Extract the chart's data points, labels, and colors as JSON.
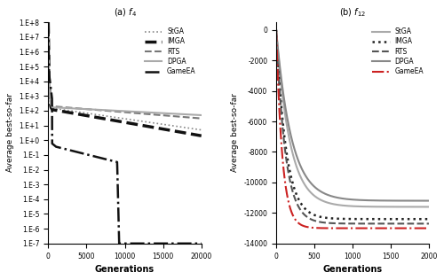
{
  "fig_width": 5.0,
  "fig_height": 3.16,
  "dpi": 100,
  "background_color": "#ffffff",
  "subplot_a": {
    "title": "(a) $f_4$",
    "xlabel": "Generations",
    "ylabel": "Average best-so-far",
    "xlim": [
      0,
      20000
    ],
    "ylim_log": [
      1e-07,
      100000000.0
    ],
    "yticks": [
      1e-07,
      1e-06,
      1e-05,
      0.0001,
      0.001,
      0.01,
      0.1,
      1.0,
      10.0,
      100.0,
      1000.0,
      10000.0,
      100000.0,
      1000000.0,
      10000000.0,
      100000000.0
    ],
    "ytick_labels": [
      "1.E-7",
      "1.E-6",
      "1.E-5",
      "1.E-4",
      "1.E-3",
      "1.E-2",
      "1.E-1",
      "1.E+0",
      "1.E+1",
      "1.E+2",
      "1.E+3",
      "1.E+4",
      "1.E+5",
      "1.E+6",
      "1.E+7",
      "1.E+8"
    ],
    "xticks": [
      0,
      5000,
      10000,
      15000,
      20000
    ],
    "legend_labels": [
      "StGA",
      "IMGA",
      "RTS",
      "DPGA",
      "GameEA"
    ],
    "legend_styles": [
      {
        "color": "#888888",
        "linestyle": "dotted",
        "linewidth": 1.2
      },
      {
        "color": "#111111",
        "linestyle": "dashed",
        "linewidth": 2.5
      },
      {
        "color": "#777777",
        "linestyle": "dashed",
        "linewidth": 1.5
      },
      {
        "color": "#aaaaaa",
        "linestyle": "solid",
        "linewidth": 1.5
      },
      {
        "color": "#111111",
        "linestyle": "dashdot",
        "linewidth": 1.8
      }
    ]
  },
  "subplot_b": {
    "title": "(b) $f_{12}$",
    "xlabel": "Generations",
    "ylabel": "Average best-so-far",
    "xlim": [
      0,
      2000
    ],
    "ylim": [
      -14000,
      500
    ],
    "yticks": [
      0,
      -2000,
      -4000,
      -6000,
      -8000,
      -10000,
      -12000,
      -14000
    ],
    "xticks": [
      0,
      500,
      1000,
      1500,
      2000
    ],
    "legend_labels": [
      "StGA",
      "IMGA",
      "RTS",
      "DPGA",
      "GameEA"
    ],
    "legend_styles": [
      {
        "color": "#aaaaaa",
        "linestyle": "solid",
        "linewidth": 1.5
      },
      {
        "color": "#222222",
        "linestyle": "dotted",
        "linewidth": 1.8
      },
      {
        "color": "#555555",
        "linestyle": "dashed",
        "linewidth": 1.5
      },
      {
        "color": "#888888",
        "linestyle": "solid",
        "linewidth": 1.5
      },
      {
        "color": "#cc2222",
        "linestyle": "dashdot",
        "linewidth": 1.5
      }
    ]
  }
}
